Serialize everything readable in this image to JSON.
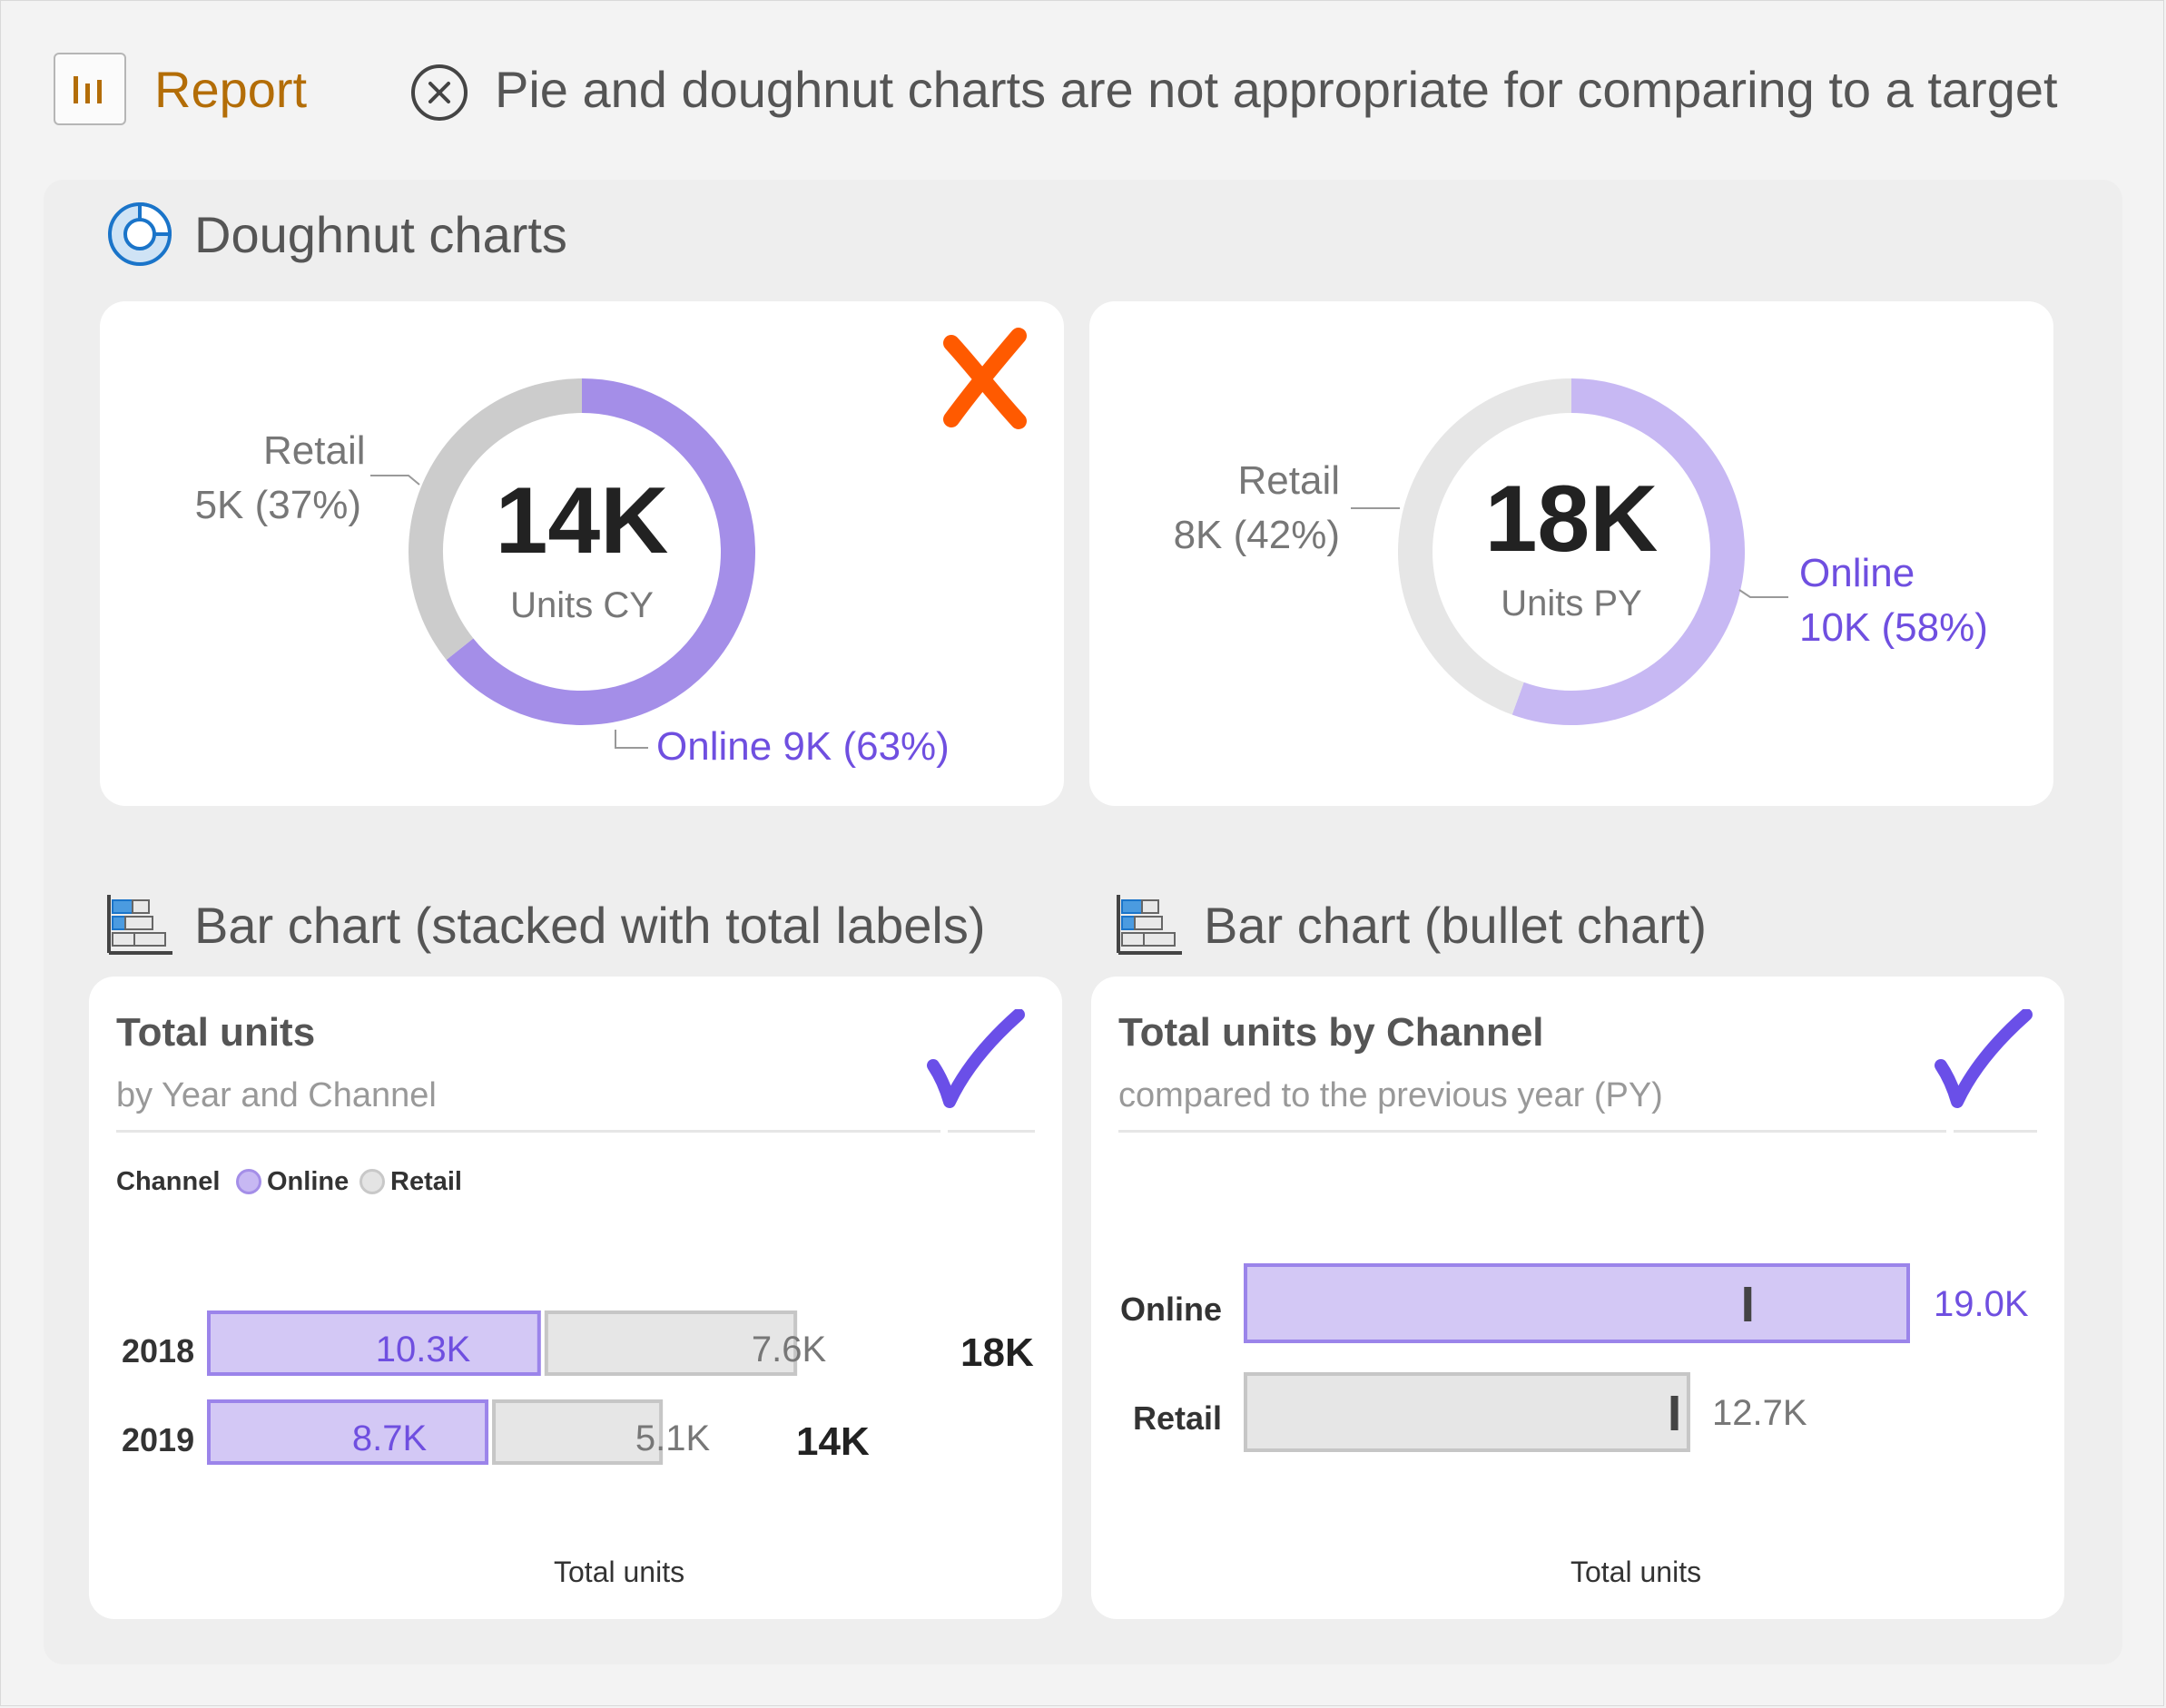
{
  "header": {
    "report_label": "Report",
    "message": "Pie and doughnut charts are not appropriate for comparing to a target"
  },
  "sections": {
    "doughnut_title": "Doughnut charts",
    "stacked_title": "Bar chart (stacked with total labels)",
    "bullet_title": "Bar chart (bullet chart)"
  },
  "colors": {
    "online_cy": "#a48ee8",
    "retail_cy": "#cccccc",
    "online_py": "#c7b8f3",
    "retail_py": "#e6e6e6",
    "accent_purple": "#6f4fe0",
    "bad_mark": "#ff5a00",
    "good_mark": "#6a4fe8"
  },
  "donut_cy": {
    "center_value": "14K",
    "center_label": "Units CY",
    "retail_name": "Retail",
    "retail_value": "5K (37%)",
    "online_label": "Online 9K (63%)",
    "verdict_icon": "cross-mark-icon"
  },
  "donut_py": {
    "center_value": "18K",
    "center_label": "Units PY",
    "retail_name": "Retail",
    "retail_value": "8K (42%)",
    "online_name": "Online",
    "online_value": "10K (58%)"
  },
  "stacked_card": {
    "title": "Total units",
    "subtitle": "by Year and Channel",
    "verdict_icon": "check-mark-icon",
    "legend_title": "Channel",
    "legend_online": "Online",
    "legend_retail": "Retail",
    "axis_title": "Total units",
    "rows": [
      {
        "year": "2018",
        "online_label": "10.3K",
        "retail_label": "7.6K",
        "total_label": "18K"
      },
      {
        "year": "2019",
        "online_label": "8.7K",
        "retail_label": "5.1K",
        "total_label": "14K"
      }
    ]
  },
  "bullet_card": {
    "title": "Total units by Channel",
    "subtitle": "compared to the previous year (PY)",
    "verdict_icon": "check-mark-icon",
    "axis_title": "Total units",
    "rows": [
      {
        "channel": "Online",
        "value_label": "19.0K"
      },
      {
        "channel": "Retail",
        "value_label": "12.7K"
      }
    ]
  },
  "chart_data": [
    {
      "type": "pie",
      "categories": [
        "Online",
        "Retail"
      ],
      "values": [
        9,
        5
      ],
      "percentages": [
        63,
        37
      ],
      "center_value": "14K",
      "center_label": "Units CY"
    },
    {
      "type": "pie",
      "categories": [
        "Online",
        "Retail"
      ],
      "values": [
        10,
        8
      ],
      "percentages": [
        58,
        42
      ],
      "center_value": "18K",
      "center_label": "Units PY"
    },
    {
      "type": "bar",
      "stacked": true,
      "orientation": "horizontal",
      "categories": [
        "2018",
        "2019"
      ],
      "series": [
        {
          "name": "Online",
          "values": [
            10.3,
            8.7
          ]
        },
        {
          "name": "Retail",
          "values": [
            7.6,
            5.1
          ]
        }
      ],
      "totals": [
        18,
        14
      ],
      "xlabel": "Total units",
      "title": "Total units",
      "subtitle": "by Year and Channel",
      "legend": "top-left"
    },
    {
      "type": "bar",
      "orientation": "horizontal",
      "categories": [
        "Online",
        "Retail"
      ],
      "values": [
        19.0,
        12.7
      ],
      "targets": [
        14.4,
        12.3
      ],
      "xlabel": "Total units",
      "title": "Total units by Channel",
      "subtitle": "compared to the previous year (PY)"
    }
  ]
}
